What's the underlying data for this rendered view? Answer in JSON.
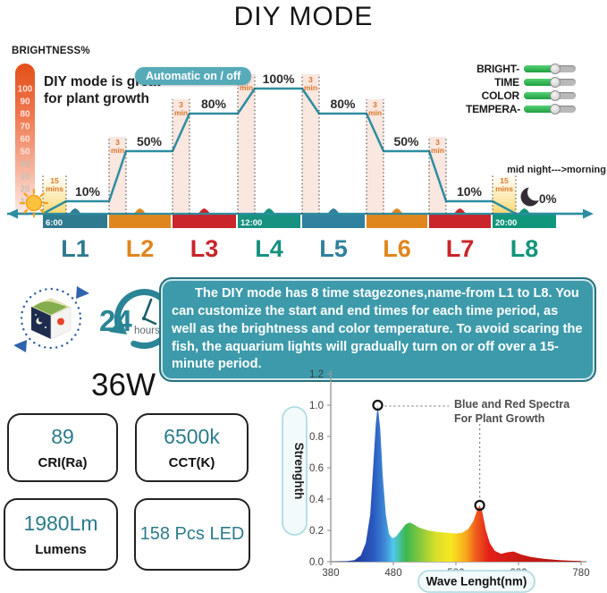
{
  "title": "DIY MODE",
  "header": {
    "brightness_axis_label": "BRIGHTNESS%",
    "note": "DIY mode is great\nfor plant growth",
    "auto_toggle_label": "Automatic on / off",
    "sliders": [
      {
        "label": "BRIGHT-"
      },
      {
        "label": "TIME"
      },
      {
        "label": "COLOR"
      },
      {
        "label": "TEMPERA-"
      }
    ],
    "night_note": "mid night--->morning"
  },
  "description": "The DIY mode has 8 time stagezones,name-from L1 to L8. You can customize the start and end times for each time period, as well as the brightness and color temperature. To avoid scaring the fish, the aquarium lights will gradually turn on or off over a 15-minute period.",
  "icons": {
    "cycle_icon": "day-night-cycle",
    "sun_icon": "sunrise-sun",
    "moon_icon": "night-moon",
    "clock_value": "24",
    "clock_unit": "hours"
  },
  "specs": {
    "wattage": "36W",
    "cards": [
      {
        "value": "89",
        "caption": "CRI(Ra)"
      },
      {
        "value": "6500k",
        "caption": "CCT(K)"
      },
      {
        "value": "1980Lm",
        "caption": "Lumens"
      },
      {
        "value": "158 Pcs LED",
        "caption": ""
      }
    ]
  },
  "colors": {
    "step_line_teal": "#2e8da0",
    "desc_box_teal": "#3d9aab",
    "orange_stage": "#e0861f",
    "red_stage": "#c9252b",
    "accent_green": "#2cb553"
  },
  "chart_data": [
    {
      "type": "step",
      "id": "diy-schedule",
      "ylabel": "BRIGHTNESS%",
      "ylim": [
        0,
        100
      ],
      "yticks": [
        100,
        90,
        80,
        70,
        60,
        50,
        40,
        30,
        20,
        10
      ],
      "stages": [
        {
          "label": "L1",
          "start": "6:00",
          "brightness_pct": 10,
          "pct_label": "10%",
          "transition": {
            "value": "15",
            "unit": "mins"
          },
          "color": "#2e7a8f"
        },
        {
          "label": "L2",
          "brightness_pct": 50,
          "pct_label": "50%",
          "transition": {
            "value": "3",
            "unit": "min"
          },
          "color": "#e0861f"
        },
        {
          "label": "L3",
          "brightness_pct": 80,
          "pct_label": "80%",
          "transition": {
            "value": "3",
            "unit": "min"
          },
          "color": "#c9252b"
        },
        {
          "label": "L4",
          "start": "12:00",
          "brightness_pct": 100,
          "pct_label": "100%",
          "transition": {
            "value": "3",
            "unit": "min"
          },
          "color": "#179180"
        },
        {
          "label": "L5",
          "brightness_pct": 80,
          "pct_label": "80%",
          "transition": {
            "value": "3",
            "unit": "min"
          },
          "color": "#30809f"
        },
        {
          "label": "L6",
          "brightness_pct": 50,
          "pct_label": "50%",
          "transition": {
            "value": "3",
            "unit": "min"
          },
          "color": "#e0861f"
        },
        {
          "label": "L7",
          "brightness_pct": 10,
          "pct_label": "10%",
          "transition": {
            "value": "3",
            "unit": "min"
          },
          "color": "#c9252b"
        },
        {
          "label": "L8",
          "start": "20:00",
          "brightness_pct": 0,
          "pct_label": "0%",
          "transition": {
            "value": "15",
            "unit": "mins"
          },
          "color": "#10967b"
        }
      ]
    },
    {
      "type": "area",
      "id": "spectrum",
      "annotation": "Blue and Red Spectra\nFor Plant Growth",
      "xlabel": "Wave Lenght(nm)",
      "ylabel": "Strenghth",
      "xlim": [
        380,
        780
      ],
      "ylim": [
        0,
        1.2
      ],
      "xticks": [
        "380",
        "480",
        "580",
        "680",
        "780"
      ],
      "yticks": [
        "0.0",
        "0.2",
        "0.4",
        "0.6",
        "0.8",
        "1.0",
        "1.2"
      ],
      "points": [
        [
          380,
          0
        ],
        [
          405,
          0.003
        ],
        [
          418,
          0.01
        ],
        [
          428,
          0.04
        ],
        [
          436,
          0.12
        ],
        [
          443,
          0.3
        ],
        [
          448,
          0.62
        ],
        [
          452,
          0.88
        ],
        [
          455,
          1.0
        ],
        [
          459,
          0.85
        ],
        [
          463,
          0.55
        ],
        [
          468,
          0.3
        ],
        [
          473,
          0.18
        ],
        [
          478,
          0.15
        ],
        [
          484,
          0.16
        ],
        [
          492,
          0.2
        ],
        [
          500,
          0.24
        ],
        [
          506,
          0.25
        ],
        [
          512,
          0.24
        ],
        [
          520,
          0.22
        ],
        [
          535,
          0.2
        ],
        [
          550,
          0.19
        ],
        [
          565,
          0.185
        ],
        [
          580,
          0.18
        ],
        [
          590,
          0.185
        ],
        [
          600,
          0.21
        ],
        [
          608,
          0.26
        ],
        [
          614,
          0.33
        ],
        [
          618,
          0.36
        ],
        [
          622,
          0.32
        ],
        [
          628,
          0.2
        ],
        [
          634,
          0.12
        ],
        [
          642,
          0.07
        ],
        [
          652,
          0.05
        ],
        [
          662,
          0.06
        ],
        [
          672,
          0.065
        ],
        [
          685,
          0.045
        ],
        [
          700,
          0.03
        ],
        [
          720,
          0.018
        ],
        [
          745,
          0.01
        ],
        [
          780,
          0.004
        ]
      ],
      "peaks": [
        {
          "x": 455,
          "y": 1.0
        },
        {
          "x": 618,
          "y": 0.36
        }
      ]
    }
  ]
}
